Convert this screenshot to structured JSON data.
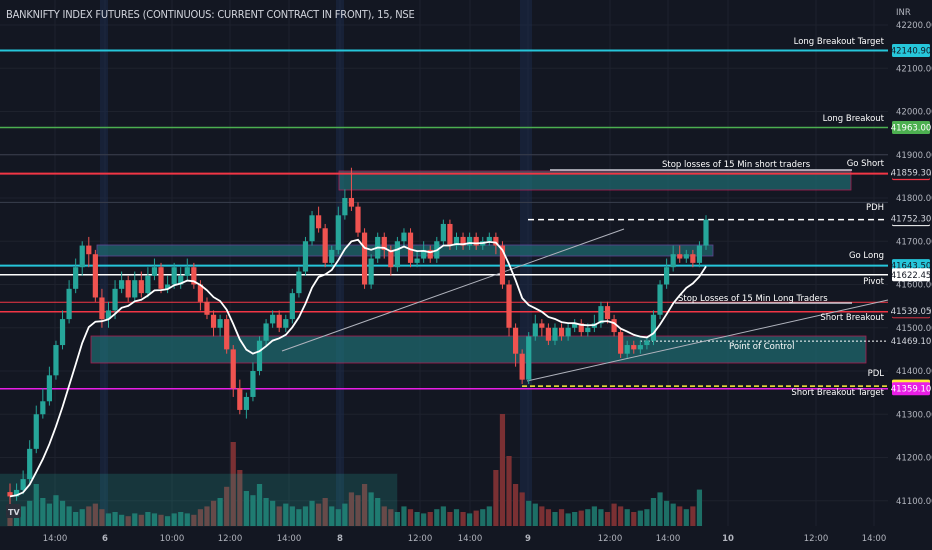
{
  "title": "BANKNIFTY INDEX FUTURES (CONTINUOUS: CURRENT CONTRACT IN FRONT), 15, NSE",
  "currency": "INR",
  "colors": {
    "background": "#131722",
    "up": "#26a69a",
    "down": "#ef5350",
    "grid": "#1e222d",
    "axis_text": "#b2b5be",
    "vwap": "#ffffff"
  },
  "chart_data": {
    "type": "candlestick",
    "y_axis": {
      "min": 41050,
      "max": 42200,
      "ticks": [
        41100,
        41200,
        41300,
        41400,
        41500,
        41600,
        41700,
        41800,
        41900,
        42000,
        42100,
        42200
      ]
    },
    "x_axis": {
      "tick_labels": [
        "14:00",
        "6",
        "10:00",
        "12:00",
        "14:00",
        "8",
        "12:00",
        "14:00",
        "9",
        "12:00",
        "14:00",
        "10",
        "12:00",
        "14:00"
      ],
      "bold_labels": [
        "6",
        "8",
        "9",
        "10"
      ]
    },
    "candles": [
      [
        41120,
        41110,
        41140,
        41090
      ],
      [
        41110,
        41125,
        41140,
        41100
      ],
      [
        41125,
        41150,
        41170,
        41115
      ],
      [
        41150,
        41220,
        41240,
        41140
      ],
      [
        41220,
        41300,
        41320,
        41210
      ],
      [
        41300,
        41330,
        41360,
        41290
      ],
      [
        41330,
        41390,
        41410,
        41320
      ],
      [
        41390,
        41460,
        41470,
        41380
      ],
      [
        41460,
        41520,
        41540,
        41450
      ],
      [
        41520,
        41590,
        41610,
        41510
      ],
      [
        41590,
        41640,
        41660,
        41580
      ],
      [
        41640,
        41690,
        41700,
        41620
      ],
      [
        41690,
        41670,
        41710,
        41640
      ],
      [
        41670,
        41570,
        41680,
        41560
      ],
      [
        41570,
        41520,
        41590,
        41500
      ],
      [
        41520,
        41540,
        41560,
        41500
      ],
      [
        41540,
        41590,
        41610,
        41520
      ],
      [
        41590,
        41610,
        41630,
        41580
      ],
      [
        41610,
        41570,
        41620,
        41560
      ],
      [
        41570,
        41610,
        41630,
        41560
      ],
      [
        41610,
        41580,
        41630,
        41570
      ],
      [
        41580,
        41620,
        41640,
        41570
      ],
      [
        41620,
        41640,
        41660,
        41610
      ],
      [
        41640,
        41590,
        41650,
        41580
      ],
      [
        41590,
        41600,
        41620,
        41580
      ],
      [
        41600,
        41640,
        41650,
        41590
      ],
      [
        41600,
        41620,
        41640,
        41590
      ],
      [
        41620,
        41640,
        41660,
        41610
      ],
      [
        41640,
        41600,
        41650,
        41590
      ],
      [
        41600,
        41560,
        41610,
        41540
      ],
      [
        41560,
        41530,
        41570,
        41520
      ],
      [
        41530,
        41500,
        41540,
        41480
      ],
      [
        41500,
        41520,
        41530,
        41480
      ],
      [
        41520,
        41450,
        41530,
        41440
      ],
      [
        41450,
        41360,
        41460,
        41340
      ],
      [
        41360,
        41310,
        41380,
        41300
      ],
      [
        41310,
        41340,
        41350,
        41290
      ],
      [
        41340,
        41400,
        41420,
        41330
      ],
      [
        41400,
        41470,
        41480,
        41390
      ],
      [
        41470,
        41510,
        41520,
        41460
      ],
      [
        41510,
        41530,
        41540,
        41500
      ],
      [
        41530,
        41500,
        41540,
        41490
      ],
      [
        41500,
        41520,
        41530,
        41490
      ],
      [
        41520,
        41580,
        41590,
        41510
      ],
      [
        41580,
        41630,
        41640,
        41570
      ],
      [
        41630,
        41700,
        41710,
        41620
      ],
      [
        41700,
        41760,
        41770,
        41690
      ],
      [
        41760,
        41730,
        41780,
        41720
      ],
      [
        41730,
        41650,
        41740,
        41640
      ],
      [
        41650,
        41680,
        41690,
        41640
      ],
      [
        41680,
        41760,
        41780,
        41670
      ],
      [
        41760,
        41800,
        41820,
        41750
      ],
      [
        41800,
        41780,
        41870,
        41770
      ],
      [
        41780,
        41720,
        41790,
        41710
      ],
      [
        41720,
        41600,
        41730,
        41590
      ],
      [
        41600,
        41660,
        41670,
        41590
      ],
      [
        41660,
        41710,
        41720,
        41650
      ],
      [
        41710,
        41680,
        41720,
        41660
      ],
      [
        41680,
        41640,
        41690,
        41620
      ],
      [
        41640,
        41700,
        41710,
        41630
      ],
      [
        41700,
        41720,
        41730,
        41690
      ],
      [
        41720,
        41650,
        41730,
        41640
      ],
      [
        41650,
        41660,
        41680,
        41640
      ],
      [
        41660,
        41680,
        41700,
        41650
      ],
      [
        41680,
        41660,
        41690,
        41650
      ],
      [
        41660,
        41700,
        41710,
        41650
      ],
      [
        41700,
        41740,
        41750,
        41690
      ],
      [
        41740,
        41690,
        41750,
        41680
      ],
      [
        41690,
        41710,
        41720,
        41680
      ],
      [
        41710,
        41690,
        41720,
        41680
      ],
      [
        41690,
        41710,
        41720,
        41680
      ],
      [
        41710,
        41690,
        41720,
        41680
      ],
      [
        41690,
        41700,
        41710,
        41680
      ],
      [
        41700,
        41710,
        41720,
        41690
      ],
      [
        41710,
        41690,
        41720,
        41670
      ],
      [
        41690,
        41600,
        41700,
        41590
      ],
      [
        41600,
        41500,
        41610,
        41480
      ],
      [
        41500,
        41440,
        41510,
        41410
      ],
      [
        41440,
        41380,
        41450,
        41370
      ],
      [
        41380,
        41480,
        41490,
        41370
      ],
      [
        41480,
        41510,
        41530,
        41470
      ],
      [
        41510,
        41500,
        41520,
        41480
      ],
      [
        41500,
        41470,
        41510,
        41460
      ],
      [
        41470,
        41500,
        41510,
        41460
      ],
      [
        41500,
        41480,
        41510,
        41470
      ],
      [
        41480,
        41500,
        41510,
        41470
      ],
      [
        41500,
        41510,
        41520,
        41490
      ],
      [
        41510,
        41490,
        41520,
        41480
      ],
      [
        41490,
        41500,
        41510,
        41480
      ],
      [
        41500,
        41510,
        41530,
        41490
      ],
      [
        41510,
        41550,
        41560,
        41500
      ],
      [
        41550,
        41520,
        41560,
        41510
      ],
      [
        41520,
        41490,
        41530,
        41480
      ],
      [
        41490,
        41440,
        41500,
        41430
      ],
      [
        41440,
        41460,
        41470,
        41430
      ],
      [
        41460,
        41450,
        41470,
        41440
      ],
      [
        41450,
        41460,
        41470,
        41440
      ],
      [
        41460,
        41470,
        41480,
        41450
      ],
      [
        41470,
        41530,
        41540,
        41460
      ],
      [
        41530,
        41600,
        41610,
        41520
      ],
      [
        41600,
        41640,
        41660,
        41590
      ],
      [
        41640,
        41670,
        41690,
        41630
      ],
      [
        41670,
        41660,
        41690,
        41650
      ],
      [
        41660,
        41670,
        41680,
        41650
      ],
      [
        41670,
        41650,
        41680,
        41640
      ],
      [
        41650,
        41690,
        41700,
        41640
      ],
      [
        41690,
        41750,
        41760,
        41680
      ]
    ],
    "volumes": [
      8,
      12,
      14,
      18,
      30,
      20,
      16,
      22,
      18,
      14,
      10,
      12,
      14,
      16,
      12,
      9,
      10,
      8,
      7,
      9,
      8,
      10,
      9,
      8,
      7,
      9,
      10,
      9,
      8,
      12,
      14,
      18,
      20,
      28,
      60,
      40,
      25,
      22,
      30,
      20,
      18,
      14,
      16,
      14,
      12,
      14,
      18,
      16,
      20,
      14,
      12,
      16,
      24,
      22,
      30,
      24,
      20,
      14,
      12,
      10,
      14,
      12,
      10,
      9,
      10,
      12,
      14,
      10,
      12,
      10,
      9,
      11,
      12,
      14,
      40,
      80,
      50,
      30,
      24,
      18,
      16,
      14,
      12,
      10,
      12,
      9,
      10,
      11,
      12,
      14,
      12,
      10,
      16,
      14,
      12,
      10,
      11,
      12,
      20,
      24,
      18,
      16,
      14,
      12,
      14,
      26
    ],
    "horizontal_levels": [
      {
        "label": "Long Breakout Target",
        "value": "42140.90",
        "color": "#26c6da"
      },
      {
        "label": "Long Breakout",
        "value": "41963.00",
        "color": "#4caf50"
      },
      {
        "label": "Go Short",
        "value": "41856.50",
        "color": "#f23645"
      },
      {
        "label": "PDH",
        "value": "41750.00",
        "color": "#ffffff"
      },
      {
        "label": "Go Long",
        "value": "41643.50",
        "color": "#26c6da"
      },
      {
        "label": "Pivot",
        "value": "41622.45",
        "color": "#ffffff"
      },
      {
        "label": "Short Breakout",
        "value": "41537.00",
        "color": "#f23645"
      },
      {
        "label": "PDL",
        "value": "41365.00",
        "color": "#ffeb3b"
      },
      {
        "label": "Short Breakout Target",
        "value": "41359.10",
        "color": "#e91ee6"
      }
    ],
    "price_tags": [
      {
        "value": "41859.30",
        "y": 41859.3
      },
      {
        "value": "41752.30",
        "y": 41752.3
      },
      {
        "value": "41539.05",
        "y": 41539.05
      },
      {
        "value": "41469.10",
        "y": 41469.1
      }
    ],
    "annotations": [
      {
        "text": "Stop losses of 15 Min short traders"
      },
      {
        "text": "Stop Losses of  15 Min Long Traders"
      },
      {
        "text": "Point of Control"
      }
    ]
  }
}
